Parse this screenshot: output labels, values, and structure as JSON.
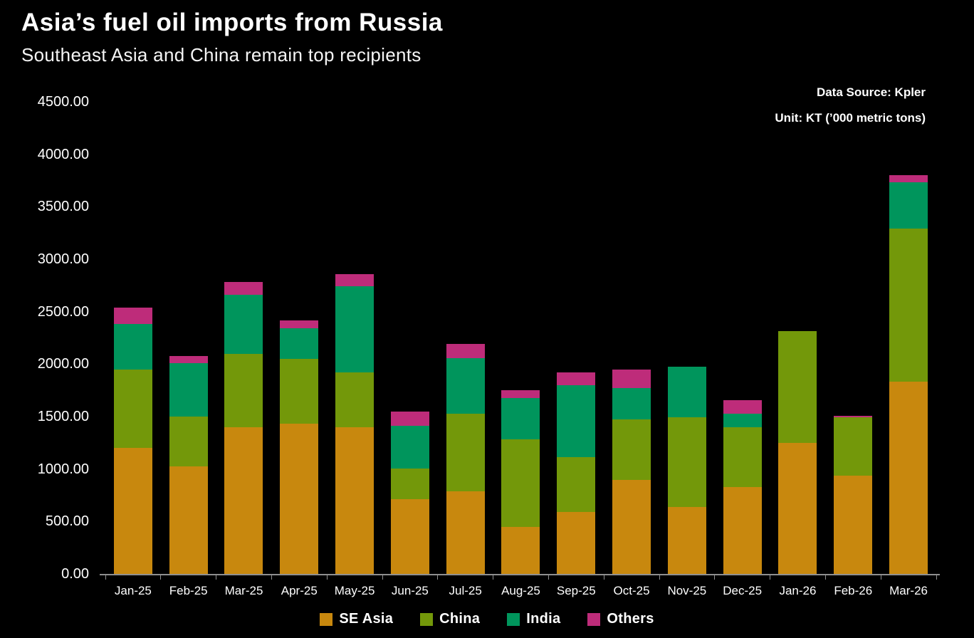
{
  "header": {
    "title": "Asia’s fuel oil imports from Russia",
    "subtitle": "Southeast Asia and China remain top recipients"
  },
  "source": {
    "line1": "Data Source: Kpler",
    "line2": "Unit: KT (’000 metric tons)"
  },
  "chart_data": {
    "type": "bar",
    "stacked": true,
    "title": "Asia’s fuel oil imports from Russia",
    "subtitle": "Southeast Asia and China remain top recipients",
    "unit": "KT (’000 metric tons)",
    "data_source": "Kpler",
    "categories": [
      "Jan-25",
      "Feb-25",
      "Mar-25",
      "Apr-25",
      "May-25",
      "Jun-25",
      "Jul-25",
      "Aug-25",
      "Sep-25",
      "Oct-25",
      "Nov-25",
      "Dec-25",
      "Jan-26",
      "Feb-26",
      "Mar-26"
    ],
    "series": [
      {
        "name": "SE Asia",
        "color": "#C8880E",
        "values": [
          1200,
          1025,
          1400,
          1430,
          1400,
          710,
          790,
          445,
          590,
          895,
          640,
          830,
          1250,
          935,
          1830
        ]
      },
      {
        "name": "China",
        "color": "#73980A",
        "values": [
          750,
          475,
          700,
          620,
          520,
          295,
          740,
          835,
          520,
          580,
          855,
          565,
          1065,
          560,
          1465
        ]
      },
      {
        "name": "India",
        "color": "#00955C",
        "values": [
          430,
          510,
          560,
          290,
          820,
          405,
          530,
          400,
          690,
          300,
          480,
          130,
          0,
          0,
          440
        ]
      },
      {
        "name": "Others",
        "color": "#BE2C7A",
        "values": [
          160,
          65,
          120,
          75,
          120,
          140,
          135,
          70,
          120,
          170,
          0,
          130,
          0,
          15,
          65
        ]
      }
    ],
    "totals": [
      2540,
      2075,
      2780,
      2415,
      2860,
      1550,
      2195,
      1750,
      1920,
      1945,
      1975,
      1655,
      2315,
      1510,
      3800
    ],
    "ylim": [
      0,
      4500
    ],
    "ytick_step": 500,
    "ytick_labels": [
      "4500.00",
      "4000.00",
      "3500.00",
      "3000.00",
      "2500.00",
      "2000.00",
      "1500.00",
      "1000.00",
      "500.00",
      "0.00"
    ],
    "grid": false,
    "legend_position": "bottom",
    "background": "#000000",
    "text_color": "#ffffff",
    "axis_color": "#8f8f8f"
  }
}
